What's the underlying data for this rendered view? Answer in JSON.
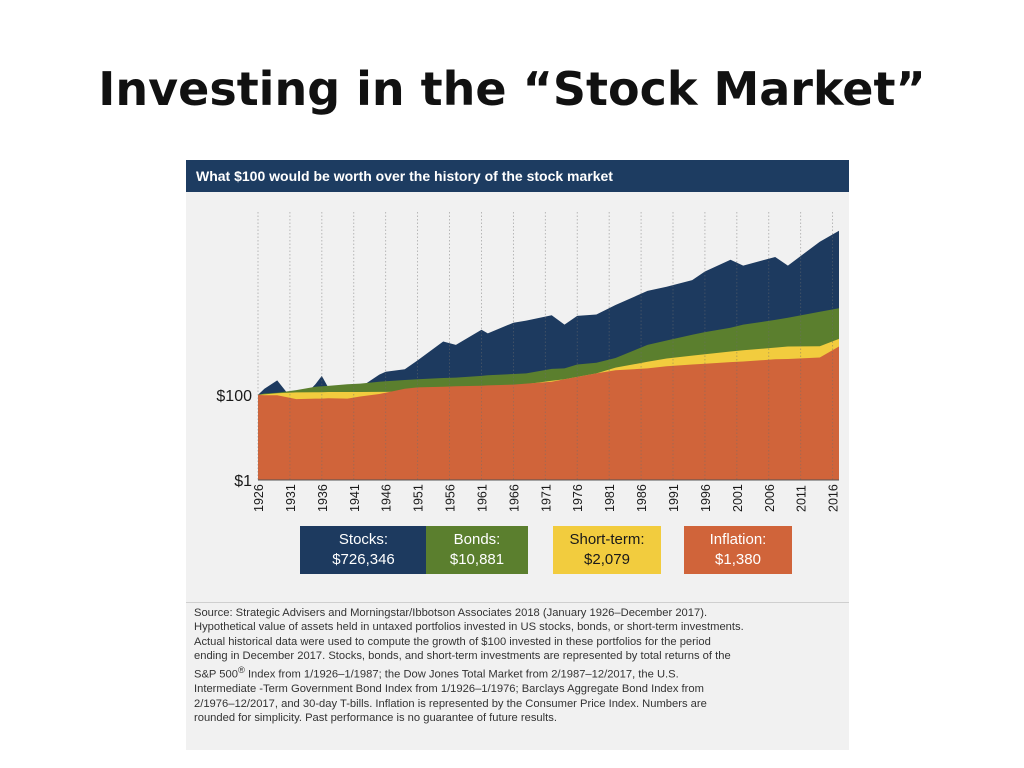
{
  "slide": {
    "title": "Investing in the “Stock Market”"
  },
  "chart_data": {
    "type": "area",
    "title": "What $100 would be worth over the history of the stock market",
    "y_scale": "log",
    "y_ticks": [
      {
        "label": "$100",
        "value": 100
      },
      {
        "label": "$1",
        "value": 1
      }
    ],
    "ylim": [
      1,
      2000000
    ],
    "x_tick_labels": [
      "1926",
      "1931",
      "1936",
      "1941",
      "1946",
      "1951",
      "1956",
      "1961",
      "1966",
      "1971",
      "1976",
      "1981",
      "1986",
      "1991",
      "1996",
      "2001",
      "2006",
      "2011",
      "2016"
    ],
    "x": [
      1926,
      1927,
      1929,
      1932,
      1935,
      1936,
      1937,
      1940,
      1942,
      1945,
      1946,
      1949,
      1951,
      1955,
      1957,
      1961,
      1962,
      1966,
      1968,
      1972,
      1974,
      1976,
      1979,
      1982,
      1987,
      1990,
      1994,
      1996,
      2000,
      2002,
      2007,
      2009,
      2014,
      2017
    ],
    "series": [
      {
        "name": "Stocks",
        "color": "#1d3a5f",
        "values": [
          100,
          140,
          220,
          60,
          180,
          280,
          150,
          160,
          150,
          300,
          350,
          400,
          650,
          1800,
          1500,
          3400,
          2800,
          5000,
          5600,
          7500,
          4500,
          7200,
          7800,
          13000,
          28000,
          35000,
          50000,
          80000,
          150000,
          110000,
          175000,
          110000,
          400000,
          726346
        ]
      },
      {
        "name": "Bonds",
        "color": "#5b7f2e",
        "values": [
          100,
          108,
          113,
          130,
          155,
          160,
          163,
          178,
          185,
          205,
          210,
          225,
          235,
          250,
          255,
          280,
          290,
          310,
          320,
          410,
          420,
          520,
          570,
          740,
          1500,
          1900,
          2600,
          3000,
          3800,
          4500,
          5800,
          6500,
          9000,
          10881
        ]
      },
      {
        "name": "Short-term",
        "color": "#f2cc3e",
        "values": [
          100,
          103,
          110,
          115,
          116,
          116,
          117,
          117,
          117,
          118,
          118,
          120,
          122,
          130,
          135,
          148,
          152,
          170,
          180,
          215,
          235,
          265,
          320,
          440,
          600,
          720,
          840,
          900,
          1050,
          1120,
          1300,
          1380,
          1400,
          2079
        ]
      },
      {
        "name": "Inflation",
        "color": "#d0643a",
        "values": [
          100,
          98,
          98,
          80,
          82,
          82,
          84,
          82,
          92,
          105,
          112,
          140,
          150,
          155,
          160,
          165,
          168,
          175,
          185,
          205,
          235,
          265,
          320,
          380,
          420,
          470,
          520,
          540,
          590,
          610,
          690,
          700,
          760,
          1380
        ]
      }
    ],
    "legend": [
      {
        "name": "Stocks:",
        "value": "$726,346",
        "color": "#1d3a5f",
        "text_color": "#ffffff"
      },
      {
        "name": "Bonds:",
        "value": "$10,881",
        "color": "#5b7f2e",
        "text_color": "#ffffff"
      },
      {
        "name": "Short-term:",
        "value": "$2,079",
        "color": "#f2cc3e",
        "text_color": "#1a1a1a"
      },
      {
        "name": "Inflation:",
        "value": "$1,380",
        "color": "#d0643a",
        "text_color": "#ffffff"
      }
    ],
    "grid": "vertical dotted at each x tick",
    "legend_placement": "bottom"
  },
  "source_note": {
    "line1": "Source: Strategic Advisers and Morningstar/Ibbotson Associates 2018 (January 1926–December 2017).",
    "line2": "Hypothetical value of assets held in untaxed portfolios invested in US stocks, bonds, or short-term investments.",
    "line3": "Actual historical data were used to compute the growth of $100 invested in these portfolios for the period",
    "line4": "ending in December 2017. Stocks, bonds, and short-term investments are represented by total returns of the",
    "line5a": "S&P 500",
    "line5sup": "®",
    "line5b": " Index from 1/1926–1/1987; the Dow Jones Total Market from 2/1987–12/2017, the U.S.",
    "line6": "Intermediate -Term Government Bond Index from 1/1926–1/1976; Barclays Aggregate Bond Index from",
    "line7": "2/1976–12/2017, and 30-day T-bills. Inflation is represented by the Consumer Price Index. Numbers are",
    "line8": "rounded for simplicity. Past performance is no guarantee of future results."
  }
}
